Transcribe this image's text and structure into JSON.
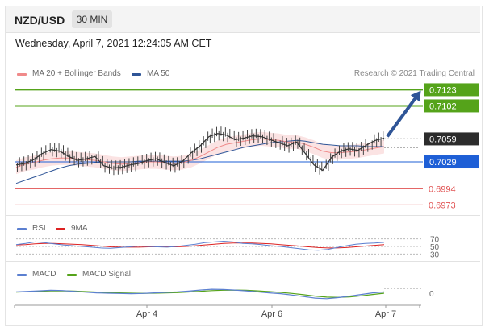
{
  "header": {
    "pair": "NZD/USD",
    "timeframe": "30 MIN",
    "datetime": "Wednesday, April 7, 2021 12:24:05 AM CET"
  },
  "credit": "Research © 2021 Trading Central",
  "colors": {
    "price_up": "#444444",
    "ma20": "#f08a8a",
    "band_fill": "#fbe3e3",
    "ma50": "#2f5597",
    "resistance": "#55a31a",
    "support": "#e05050",
    "pivot": "#1e5fd6",
    "arrow": "#2f5597",
    "rsi": "#5b7fd0",
    "rsi_ma": "#dd2222",
    "macd": "#5b7fd0",
    "macd_signal": "#55a31a"
  },
  "chart_data": [
    {
      "type": "line",
      "panel": "price",
      "legend": [
        "MA 20 + Bollinger Bands",
        "MA 50"
      ],
      "ylim": [
        0.6965,
        0.7135
      ],
      "x_ticks": [
        "Apr 4",
        "Apr 6",
        "Apr 7"
      ],
      "last_price": "0.7059",
      "levels": [
        {
          "value": 0.7123,
          "label": "0.7123",
          "kind": "resistance"
        },
        {
          "value": 0.7102,
          "label": "0.7102",
          "kind": "resistance"
        },
        {
          "value": 0.7029,
          "label": "0.7029",
          "kind": "pivot"
        },
        {
          "value": 0.6994,
          "label": "0.6994",
          "kind": "support"
        },
        {
          "value": 0.6973,
          "label": "0.6973",
          "kind": "support"
        }
      ],
      "series": [
        {
          "name": "Price",
          "values": [
            0.7025,
            0.7027,
            0.7032,
            0.704,
            0.7045,
            0.7043,
            0.7036,
            0.7031,
            0.7033,
            0.7036,
            0.7024,
            0.7021,
            0.7022,
            0.7025,
            0.7027,
            0.7031,
            0.7033,
            0.7028,
            0.7024,
            0.703,
            0.7041,
            0.705,
            0.7062,
            0.7066,
            0.7064,
            0.7058,
            0.706,
            0.7063,
            0.7062,
            0.7058,
            0.7054,
            0.705,
            0.7055,
            0.704,
            0.7025,
            0.7018,
            0.7035,
            0.7043,
            0.7046,
            0.7044,
            0.7051,
            0.7057,
            0.706
          ]
        },
        {
          "name": "MA 20",
          "values": [
            0.7022,
            0.7026,
            0.7028,
            0.7031,
            0.7033,
            0.7034,
            0.7034,
            0.7033,
            0.7032,
            0.7031,
            0.7029,
            0.7027,
            0.7026,
            0.7027,
            0.7028,
            0.7029,
            0.7029,
            0.7028,
            0.7027,
            0.7028,
            0.7031,
            0.7036,
            0.7042,
            0.7048,
            0.7052,
            0.7054,
            0.7056,
            0.7058,
            0.7059,
            0.7058,
            0.7057,
            0.7055,
            0.7055,
            0.7052,
            0.7048,
            0.7043,
            0.7041,
            0.7041,
            0.7042,
            0.7043,
            0.7045,
            0.7047,
            0.7049
          ]
        },
        {
          "name": "MA 50",
          "values": [
            0.7001,
            0.7005,
            0.7009,
            0.7013,
            0.7017,
            0.7021,
            0.7024,
            0.7026,
            0.7027,
            0.7028,
            0.7029,
            0.7029,
            0.7029,
            0.7029,
            0.703,
            0.703,
            0.703,
            0.703,
            0.703,
            0.703,
            0.7031,
            0.7033,
            0.7036,
            0.7039,
            0.7042,
            0.7045,
            0.7048,
            0.705,
            0.7052,
            0.7054,
            0.7055,
            0.7056,
            0.7057,
            0.7056,
            0.7054,
            0.7052,
            0.7051,
            0.705,
            0.705,
            0.705,
            0.7049,
            0.7049,
            0.7049
          ]
        }
      ]
    },
    {
      "type": "line",
      "panel": "rsi",
      "legend": [
        "RSI",
        "9MA"
      ],
      "y_ticks": [
        "70",
        "50",
        "30"
      ],
      "ylim": [
        20,
        80
      ],
      "series": [
        {
          "name": "RSI",
          "values": [
            55,
            58,
            62,
            60,
            57,
            54,
            52,
            50,
            48,
            46,
            45,
            47,
            49,
            51,
            50,
            49,
            48,
            50,
            53,
            56,
            60,
            62,
            64,
            62,
            58,
            57,
            55,
            52,
            50,
            47,
            44,
            41,
            40,
            42,
            47,
            52,
            56,
            58,
            59,
            61
          ]
        },
        {
          "name": "9MA",
          "values": [
            54,
            55,
            57,
            58,
            58,
            57,
            56,
            55,
            53,
            51,
            49,
            48,
            48,
            48,
            49,
            49,
            49,
            49,
            50,
            52,
            54,
            56,
            58,
            59,
            59,
            59,
            58,
            57,
            55,
            53,
            51,
            49,
            47,
            46,
            46,
            47,
            49,
            51,
            53,
            55
          ]
        }
      ]
    },
    {
      "type": "line",
      "panel": "macd",
      "legend": [
        "MACD",
        "MACD Signal"
      ],
      "y_ticks": [
        "0"
      ],
      "ylim": [
        -1,
        1
      ],
      "series": [
        {
          "name": "MACD",
          "values": [
            0.05,
            0.1,
            0.15,
            0.2,
            0.18,
            0.1,
            0.02,
            -0.05,
            -0.08,
            -0.1,
            -0.12,
            -0.1,
            -0.05,
            0.0,
            0.05,
            0.12,
            0.22,
            0.3,
            0.28,
            0.22,
            0.15,
            0.05,
            -0.05,
            -0.12,
            -0.25,
            -0.4,
            -0.55,
            -0.6,
            -0.5,
            -0.35,
            -0.2,
            -0.05,
            0.05
          ]
        },
        {
          "name": "MACD Signal",
          "values": [
            0.02,
            0.06,
            0.1,
            0.14,
            0.15,
            0.13,
            0.08,
            0.03,
            -0.01,
            -0.05,
            -0.08,
            -0.09,
            -0.08,
            -0.05,
            -0.02,
            0.04,
            0.1,
            0.17,
            0.21,
            0.22,
            0.2,
            0.15,
            0.08,
            0.0,
            -0.1,
            -0.22,
            -0.35,
            -0.45,
            -0.48,
            -0.43,
            -0.33,
            -0.2,
            -0.08
          ]
        }
      ]
    }
  ]
}
